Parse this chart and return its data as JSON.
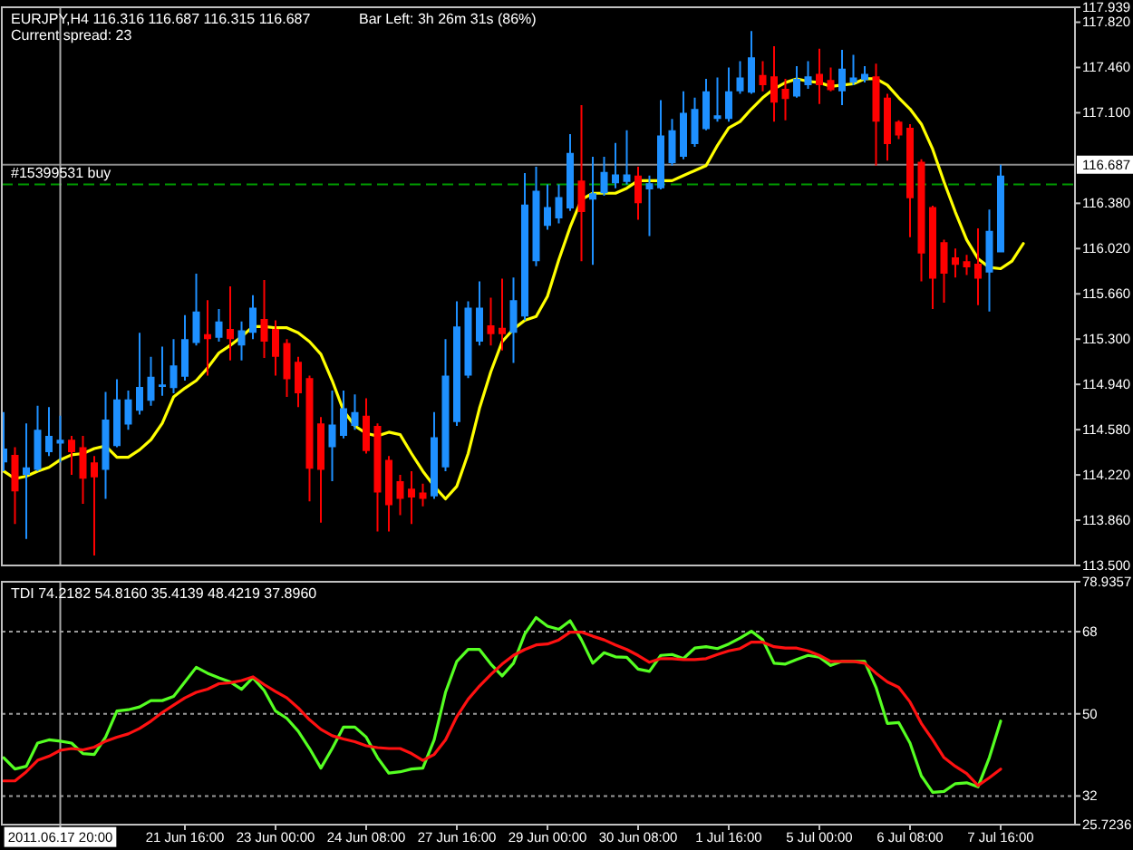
{
  "chart_data": [
    {
      "type": "candlestick",
      "title": "EURJPY,H4 116.316 116.687 116.315 116.687",
      "annotations": [
        "Current spread: 23",
        "Bar Left: 3h 26m 31s (86%)"
      ],
      "categories": [
        null,
        null,
        null,
        null,
        null,
        "2011.06.17 20:00",
        null,
        null,
        null,
        null,
        null,
        null,
        null,
        null,
        null,
        null,
        "21 Jun 16:00",
        null,
        null,
        null,
        null,
        null,
        null,
        null,
        "23 Jun 00:00",
        null,
        null,
        null,
        null,
        null,
        null,
        null,
        "24 Jun 08:00",
        null,
        null,
        null,
        null,
        null,
        null,
        null,
        "27 Jun 16:00",
        null,
        null,
        null,
        null,
        null,
        null,
        null,
        "29 Jun 00:00",
        null,
        null,
        null,
        null,
        null,
        null,
        null,
        "30 Jun 08:00",
        null,
        null,
        null,
        null,
        null,
        null,
        null,
        "1 Jul 16:00",
        null,
        null,
        null,
        null,
        null,
        null,
        null,
        "5 Jul 00:00",
        null,
        null,
        null,
        null,
        null,
        null,
        null,
        "6 Jul 08:00",
        null,
        null,
        null,
        null,
        null,
        null,
        null,
        "7 Jul 16:00",
        null,
        null
      ],
      "ohlc": [
        [
          114.32,
          114.72,
          114.25,
          114.43
        ],
        [
          114.38,
          114.44,
          113.83,
          114.09
        ],
        [
          114.22,
          114.63,
          113.71,
          114.28
        ],
        [
          114.26,
          114.77,
          114.25,
          114.58
        ],
        [
          114.4,
          114.76,
          114.37,
          114.53
        ],
        [
          114.47,
          114.69,
          114.32,
          114.5
        ],
        [
          114.5,
          114.53,
          114.22,
          114.4
        ],
        [
          114.44,
          114.53,
          113.99,
          114.19
        ],
        [
          114.32,
          114.37,
          113.58,
          114.2
        ],
        [
          114.26,
          114.88,
          114.03,
          114.66
        ],
        [
          114.45,
          114.98,
          114.44,
          114.82
        ],
        [
          114.62,
          114.89,
          114.58,
          114.82
        ],
        [
          114.73,
          115.35,
          114.7,
          114.92
        ],
        [
          114.81,
          115.16,
          114.77,
          115.0
        ],
        [
          114.92,
          115.24,
          114.85,
          114.94
        ],
        [
          114.91,
          115.3,
          114.87,
          115.09
        ],
        [
          115.0,
          115.49,
          114.97,
          115.3
        ],
        [
          115.27,
          115.82,
          115.25,
          115.52
        ],
        [
          115.34,
          115.61,
          115.01,
          115.3
        ],
        [
          115.31,
          115.54,
          115.28,
          115.44
        ],
        [
          115.38,
          115.72,
          115.13,
          115.3
        ],
        [
          115.25,
          115.44,
          115.13,
          115.37
        ],
        [
          115.35,
          115.65,
          115.3,
          115.55
        ],
        [
          115.46,
          115.77,
          115.15,
          115.28
        ],
        [
          115.38,
          115.45,
          115.01,
          115.16
        ],
        [
          115.27,
          115.3,
          114.84,
          114.98
        ],
        [
          115.12,
          115.16,
          114.76,
          114.87
        ],
        [
          114.99,
          115.01,
          114.01,
          114.27
        ],
        [
          114.63,
          114.68,
          113.84,
          114.26
        ],
        [
          114.44,
          114.89,
          114.17,
          114.62
        ],
        [
          114.53,
          114.89,
          114.51,
          114.75
        ],
        [
          114.61,
          114.86,
          114.58,
          114.72
        ],
        [
          114.69,
          114.83,
          114.39,
          114.41
        ],
        [
          114.61,
          114.63,
          113.77,
          114.08
        ],
        [
          114.34,
          114.37,
          113.77,
          113.98
        ],
        [
          114.17,
          114.22,
          113.9,
          114.03
        ],
        [
          114.11,
          114.25,
          113.83,
          114.04
        ],
        [
          114.08,
          114.15,
          113.97,
          114.03
        ],
        [
          114.05,
          114.72,
          114.03,
          114.52
        ],
        [
          114.28,
          115.3,
          114.25,
          115.01
        ],
        [
          114.64,
          115.6,
          114.61,
          115.4
        ],
        [
          115.01,
          115.6,
          114.99,
          115.55
        ],
        [
          115.28,
          115.76,
          115.25,
          115.55
        ],
        [
          115.41,
          115.63,
          115.25,
          115.34
        ],
        [
          115.39,
          115.78,
          115.21,
          115.34
        ],
        [
          115.35,
          115.79,
          115.11,
          115.61
        ],
        [
          115.48,
          116.62,
          115.45,
          116.37
        ],
        [
          115.92,
          116.67,
          115.88,
          116.48
        ],
        [
          116.2,
          116.53,
          116.17,
          116.35
        ],
        [
          116.26,
          116.53,
          116.22,
          116.43
        ],
        [
          116.34,
          116.93,
          116.32,
          116.78
        ],
        [
          116.56,
          117.16,
          115.92,
          116.31
        ],
        [
          116.41,
          116.75,
          115.89,
          116.46
        ],
        [
          116.46,
          116.75,
          116.44,
          116.63
        ],
        [
          116.54,
          116.86,
          116.5,
          116.61
        ],
        [
          116.55,
          116.96,
          116.53,
          116.61
        ],
        [
          116.6,
          116.67,
          116.25,
          116.38
        ],
        [
          116.49,
          116.6,
          116.12,
          116.54
        ],
        [
          116.5,
          117.2,
          116.49,
          116.92
        ],
        [
          116.7,
          117.05,
          116.68,
          116.96
        ],
        [
          116.75,
          117.27,
          116.73,
          117.1
        ],
        [
          116.85,
          117.22,
          116.83,
          117.13
        ],
        [
          116.97,
          117.37,
          116.96,
          117.27
        ],
        [
          117.05,
          117.38,
          117.03,
          117.08
        ],
        [
          117.05,
          117.46,
          117.03,
          117.27
        ],
        [
          117.27,
          117.51,
          117.25,
          117.38
        ],
        [
          117.26,
          117.75,
          117.25,
          117.54
        ],
        [
          117.4,
          117.51,
          117.27,
          117.32
        ],
        [
          117.39,
          117.63,
          117.03,
          117.18
        ],
        [
          117.29,
          117.37,
          117.04,
          117.21
        ],
        [
          117.23,
          117.47,
          117.22,
          117.37
        ],
        [
          117.32,
          117.51,
          117.29,
          117.39
        ],
        [
          117.41,
          117.61,
          117.17,
          117.32
        ],
        [
          117.36,
          117.46,
          117.27,
          117.28
        ],
        [
          117.27,
          117.6,
          117.16,
          117.45
        ],
        [
          117.34,
          117.56,
          117.32,
          117.38
        ],
        [
          117.36,
          117.47,
          117.34,
          117.41
        ],
        [
          117.39,
          117.49,
          116.68,
          117.03
        ],
        [
          117.22,
          117.25,
          116.72,
          116.85
        ],
        [
          117.03,
          117.04,
          116.89,
          116.92
        ],
        [
          116.98,
          117.01,
          116.11,
          116.42
        ],
        [
          116.71,
          116.73,
          115.76,
          115.98
        ],
        [
          116.35,
          116.36,
          115.54,
          115.78
        ],
        [
          116.07,
          116.09,
          115.59,
          115.82
        ],
        [
          115.95,
          116.02,
          115.79,
          115.89
        ],
        [
          115.92,
          115.97,
          115.81,
          115.87
        ],
        [
          115.9,
          116.18,
          115.57,
          115.78
        ],
        [
          115.83,
          116.33,
          115.52,
          116.16
        ],
        [
          115.99,
          116.687,
          115.99,
          116.6
        ],
        null,
        null
      ],
      "colors": [
        "#1e90ff",
        "#ff0000",
        "#1e90ff",
        "#1e90ff",
        "#1e90ff",
        "#1e90ff",
        "#ff0000",
        "#ff0000",
        "#ff0000",
        "#1e90ff",
        "#1e90ff",
        "#1e90ff",
        "#1e90ff",
        "#1e90ff",
        "#1e90ff",
        "#1e90ff",
        "#1e90ff",
        "#1e90ff",
        "#ff0000",
        "#1e90ff",
        "#ff0000",
        "#1e90ff",
        "#1e90ff",
        "#ff0000",
        "#ff0000",
        "#ff0000",
        "#ff0000",
        "#ff0000",
        "#ff0000",
        "#1e90ff",
        "#1e90ff",
        "#1e90ff",
        "#ff0000",
        "#ff0000",
        "#ff0000",
        "#ff0000",
        "#ff0000",
        "#ff0000",
        "#1e90ff",
        "#1e90ff",
        "#1e90ff",
        "#1e90ff",
        "#1e90ff",
        "#ff0000",
        "#ff0000",
        "#1e90ff",
        "#1e90ff",
        "#1e90ff",
        "#1e90ff",
        "#1e90ff",
        "#1e90ff",
        "#ff0000",
        "#1e90ff",
        "#1e90ff",
        "#1e90ff",
        "#1e90ff",
        "#ff0000",
        "#1e90ff",
        "#1e90ff",
        "#1e90ff",
        "#1e90ff",
        "#1e90ff",
        "#1e90ff",
        "#1e90ff",
        "#1e90ff",
        "#1e90ff",
        "#1e90ff",
        "#ff0000",
        "#ff0000",
        "#ff0000",
        "#1e90ff",
        "#1e90ff",
        "#ff0000",
        "#ff0000",
        "#1e90ff",
        "#1e90ff",
        "#1e90ff",
        "#ff0000",
        "#ff0000",
        "#ff0000",
        "#ff0000",
        "#ff0000",
        "#ff0000",
        "#ff0000",
        "#ff0000",
        "#ff0000",
        "#ff0000",
        "#1e90ff",
        "#1e90ff",
        null,
        null
      ],
      "series": [
        {
          "type": "line",
          "color": "#ffff00",
          "values": [
            114.25,
            114.19,
            114.21,
            114.25,
            114.28,
            114.34,
            114.38,
            114.39,
            114.43,
            114.45,
            114.36,
            114.36,
            114.42,
            114.5,
            114.63,
            114.84,
            114.91,
            114.97,
            115.07,
            115.19,
            115.25,
            115.32,
            115.4,
            115.4,
            115.39,
            115.39,
            115.35,
            115.28,
            115.18,
            114.97,
            114.73,
            114.61,
            114.55,
            114.53,
            114.56,
            114.54,
            114.39,
            114.25,
            114.13,
            114.03,
            114.13,
            114.39,
            114.75,
            115.04,
            115.28,
            115.38,
            115.45,
            115.48,
            115.64,
            115.93,
            116.19,
            116.41,
            116.46,
            116.46,
            116.46,
            116.5,
            116.56,
            116.56,
            116.56,
            116.56,
            116.6,
            116.64,
            116.68,
            116.84,
            116.98,
            117.03,
            117.13,
            117.22,
            117.29,
            117.34,
            117.37,
            117.35,
            117.34,
            117.31,
            117.32,
            117.33,
            117.37,
            117.37,
            117.32,
            117.22,
            117.13,
            117.01,
            116.81,
            116.55,
            116.31,
            116.09,
            115.94,
            115.87,
            115.86,
            115.92,
            116.06
          ]
        }
      ],
      "ylim": [
        113.5,
        117.939
      ],
      "yticks": [
        117.939,
        {
          "value": 117.82,
          "label": "117.820"
        },
        {
          "value": 117.46,
          "label": "117.460"
        },
        {
          "value": 117.1,
          "label": "117.100"
        },
        {
          "value": 116.38,
          "label": "116.380"
        },
        {
          "value": 116.02,
          "label": "116.020"
        },
        {
          "value": 115.66,
          "label": "115.660"
        },
        {
          "value": 115.3,
          "label": "115.300"
        },
        {
          "value": 114.94,
          "label": "114.940"
        },
        {
          "value": 114.58,
          "label": "114.580"
        },
        {
          "value": 114.22,
          "label": "114.220"
        },
        {
          "value": 113.86,
          "label": "113.860"
        },
        {
          "value": 113.5,
          "label": "113.500"
        }
      ],
      "ref_lines": [
        {
          "axis": "y",
          "value": 116.687,
          "label": "116.687",
          "color": "#8c8c8c",
          "line_style": "solid"
        },
        {
          "axis": "y",
          "value": 116.53,
          "label": "#15399531 buy",
          "color": "#009a00",
          "line_style": "dashed"
        },
        {
          "axis": "x",
          "value": "2011.06.17 20:00",
          "color": "#a8a8a8",
          "line_style": "solid"
        }
      ],
      "tick_labels": "y"
    },
    {
      "type": "line",
      "title": "TDI 74.2182 54.8160 35.4139 48.4219 37.8960",
      "categories": [
        null,
        null,
        null,
        null,
        null,
        "2011.06.17 20:00",
        null,
        null,
        null,
        null,
        null,
        null,
        null,
        null,
        null,
        null,
        "21 Jun 16:00",
        null,
        null,
        null,
        null,
        null,
        null,
        null,
        "23 Jun 00:00",
        null,
        null,
        null,
        null,
        null,
        null,
        null,
        "24 Jun 08:00",
        null,
        null,
        null,
        null,
        null,
        null,
        null,
        "27 Jun 16:00",
        null,
        null,
        null,
        null,
        null,
        null,
        null,
        "29 Jun 00:00",
        null,
        null,
        null,
        null,
        null,
        null,
        null,
        "30 Jun 08:00",
        null,
        null,
        null,
        null,
        null,
        null,
        null,
        "1 Jul 16:00",
        null,
        null,
        null,
        null,
        null,
        null,
        null,
        "5 Jul 00:00",
        null,
        null,
        null,
        null,
        null,
        null,
        null,
        "6 Jul 08:00",
        null,
        null,
        null,
        null,
        null,
        null,
        null,
        "7 Jul 16:00",
        null,
        null
      ],
      "series": [
        {
          "color": "#55ff22",
          "values": [
            40.4,
            37.9,
            38.5,
            43.6,
            44.3,
            44.0,
            43.6,
            41.3,
            41.1,
            44.9,
            50.6,
            50.9,
            51.5,
            52.9,
            52.9,
            53.8,
            57.0,
            60.2,
            58.9,
            57.9,
            57.0,
            55.4,
            57.9,
            55.1,
            50.6,
            49.0,
            46.2,
            42.4,
            38.1,
            42.4,
            47.1,
            47.1,
            44.9,
            40.4,
            37.0,
            37.3,
            37.9,
            38.1,
            44.3,
            54.7,
            61.5,
            64.1,
            64.1,
            60.9,
            58.3,
            61.1,
            67.5,
            71.1,
            69.2,
            68.5,
            70.4,
            66.2,
            61.1,
            63.4,
            62.5,
            62.4,
            59.8,
            59.3,
            62.8,
            63.0,
            62.1,
            64.4,
            64.7,
            64.3,
            65.3,
            66.6,
            68.1,
            66.2,
            61.1,
            60.9,
            61.9,
            62.8,
            62.4,
            60.6,
            61.5,
            61.5,
            61.5,
            55.8,
            47.9,
            48.1,
            43.6,
            36.4,
            32.8,
            33.0,
            34.7,
            34.9,
            34.0,
            40.4,
            48.4219,
            null,
            null
          ]
        },
        {
          "color": "#ff1111",
          "values": [
            35.3,
            35.3,
            37.3,
            39.8,
            40.7,
            42.0,
            42.4,
            42.1,
            42.7,
            44.0,
            44.9,
            45.6,
            46.8,
            48.4,
            50.3,
            51.9,
            53.5,
            54.7,
            55.4,
            56.6,
            56.8,
            57.3,
            58.1,
            56.4,
            54.9,
            53.5,
            51.3,
            48.7,
            46.6,
            45.2,
            44.5,
            43.9,
            43.0,
            42.6,
            42.4,
            42.4,
            41.3,
            39.8,
            41.1,
            44.3,
            49.4,
            53.2,
            56.1,
            58.6,
            60.9,
            62.8,
            64.1,
            65.1,
            65.3,
            66.2,
            67.9,
            67.9,
            67.0,
            66.2,
            65.1,
            64.1,
            62.8,
            61.3,
            62.1,
            62.1,
            61.9,
            61.9,
            62.1,
            63.0,
            63.8,
            64.3,
            65.7,
            65.7,
            64.7,
            64.4,
            64.4,
            63.8,
            62.8,
            61.5,
            61.5,
            61.5,
            61.1,
            58.9,
            57.0,
            55.8,
            52.6,
            47.9,
            44.3,
            40.4,
            38.5,
            36.9,
            34.3,
            36.0,
            37.896,
            null,
            null
          ]
        }
      ],
      "ylim": [
        25.7236,
        78.9357
      ],
      "yticks": [
        78.9357,
        68,
        50,
        32,
        25.7236
      ],
      "grid": "y",
      "ref_lines": [
        {
          "axis": "x",
          "value": "2011.06.17 20:00",
          "color": "#a8a8a8",
          "line_style": "solid"
        }
      ]
    }
  ]
}
